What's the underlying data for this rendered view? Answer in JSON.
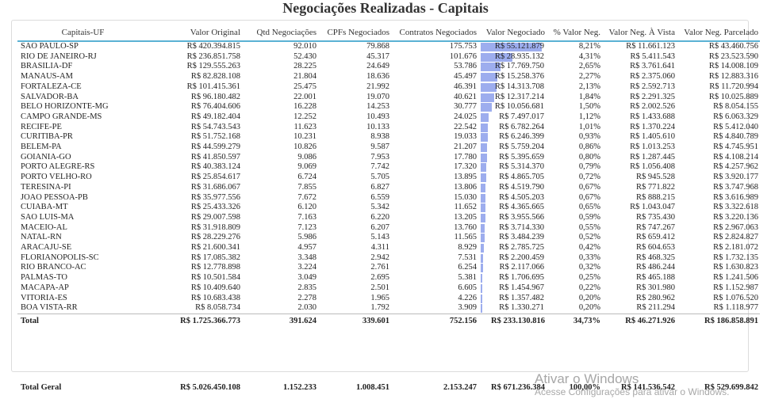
{
  "title": "Negociações Realizadas - Capitais",
  "columns": [
    "Capitais-UF",
    "Valor Original",
    "Qtd Negociações",
    "CPFs Negociados",
    "Contratos Negociados",
    "Valor Negociado",
    "% Valor Neg.",
    "Valor Neg. À Vista",
    "Valor Neg. Parcelado"
  ],
  "bar_color": "#9dadee",
  "bar_max_value": 55121879,
  "rows": [
    {
      "uf": "SAO PAULO-SP",
      "orig": "R$ 420.394.815",
      "qtd": "92.010",
      "cpfs": "79.868",
      "contratos": "175.753",
      "vneg": "R$ 55.121.879",
      "vneg_num": 55121879,
      "pct": "8,21%",
      "vista": "R$ 11.661.123",
      "parc": "R$ 43.460.756"
    },
    {
      "uf": "RIO DE JANEIRO-RJ",
      "orig": "R$ 236.851.758",
      "qtd": "52.430",
      "cpfs": "45.317",
      "contratos": "101.676",
      "vneg": "R$ 28.935.132",
      "vneg_num": 28935132,
      "pct": "4,31%",
      "vista": "R$ 5.411.543",
      "parc": "R$ 23.523.590"
    },
    {
      "uf": "BRASILIA-DF",
      "orig": "R$ 129.555.263",
      "qtd": "28.225",
      "cpfs": "24.649",
      "contratos": "53.786",
      "vneg": "R$ 17.769.750",
      "vneg_num": 17769750,
      "pct": "2,65%",
      "vista": "R$ 3.761.641",
      "parc": "R$ 14.008.109"
    },
    {
      "uf": "MANAUS-AM",
      "orig": "R$ 82.828.108",
      "qtd": "21.804",
      "cpfs": "18.636",
      "contratos": "45.497",
      "vneg": "R$ 15.258.376",
      "vneg_num": 15258376,
      "pct": "2,27%",
      "vista": "R$ 2.375.060",
      "parc": "R$ 12.883.316"
    },
    {
      "uf": "FORTALEZA-CE",
      "orig": "R$ 101.415.361",
      "qtd": "25.475",
      "cpfs": "21.992",
      "contratos": "46.391",
      "vneg": "R$ 14.313.708",
      "vneg_num": 14313708,
      "pct": "2,13%",
      "vista": "R$ 2.592.713",
      "parc": "R$ 11.720.994"
    },
    {
      "uf": "SALVADOR-BA",
      "orig": "R$ 96.180.482",
      "qtd": "22.001",
      "cpfs": "19.070",
      "contratos": "40.621",
      "vneg": "R$ 12.317.214",
      "vneg_num": 12317214,
      "pct": "1,84%",
      "vista": "R$ 2.291.325",
      "parc": "R$ 10.025.889"
    },
    {
      "uf": "BELO HORIZONTE-MG",
      "orig": "R$ 76.404.606",
      "qtd": "16.228",
      "cpfs": "14.253",
      "contratos": "30.777",
      "vneg": "R$ 10.056.681",
      "vneg_num": 10056681,
      "pct": "1,50%",
      "vista": "R$ 2.002.526",
      "parc": "R$ 8.054.155"
    },
    {
      "uf": "CAMPO GRANDE-MS",
      "orig": "R$ 49.182.404",
      "qtd": "12.252",
      "cpfs": "10.493",
      "contratos": "24.025",
      "vneg": "R$ 7.497.017",
      "vneg_num": 7497017,
      "pct": "1,12%",
      "vista": "R$ 1.433.688",
      "parc": "R$ 6.063.329"
    },
    {
      "uf": "RECIFE-PE",
      "orig": "R$ 54.743.543",
      "qtd": "11.623",
      "cpfs": "10.133",
      "contratos": "22.542",
      "vneg": "R$ 6.782.264",
      "vneg_num": 6782264,
      "pct": "1,01%",
      "vista": "R$ 1.370.224",
      "parc": "R$ 5.412.040"
    },
    {
      "uf": "CURITIBA-PR",
      "orig": "R$ 51.752.168",
      "qtd": "10.231",
      "cpfs": "8.938",
      "contratos": "19.033",
      "vneg": "R$ 6.246.399",
      "vneg_num": 6246399,
      "pct": "0,93%",
      "vista": "R$ 1.405.610",
      "parc": "R$ 4.840.789"
    },
    {
      "uf": "BELEM-PA",
      "orig": "R$ 44.599.279",
      "qtd": "10.826",
      "cpfs": "9.587",
      "contratos": "21.207",
      "vneg": "R$ 5.759.204",
      "vneg_num": 5759204,
      "pct": "0,86%",
      "vista": "R$ 1.013.253",
      "parc": "R$ 4.745.951"
    },
    {
      "uf": "GOIANIA-GO",
      "orig": "R$ 41.850.597",
      "qtd": "9.086",
      "cpfs": "7.953",
      "contratos": "17.780",
      "vneg": "R$ 5.395.659",
      "vneg_num": 5395659,
      "pct": "0,80%",
      "vista": "R$ 1.287.445",
      "parc": "R$ 4.108.214"
    },
    {
      "uf": "PORTO ALEGRE-RS",
      "orig": "R$ 40.383.124",
      "qtd": "9.069",
      "cpfs": "7.742",
      "contratos": "17.320",
      "vneg": "R$ 5.314.370",
      "vneg_num": 5314370,
      "pct": "0,79%",
      "vista": "R$ 1.056.408",
      "parc": "R$ 4.257.962"
    },
    {
      "uf": "PORTO VELHO-RO",
      "orig": "R$ 25.854.617",
      "qtd": "6.724",
      "cpfs": "5.705",
      "contratos": "13.895",
      "vneg": "R$ 4.865.705",
      "vneg_num": 4865705,
      "pct": "0,72%",
      "vista": "R$ 945.528",
      "parc": "R$ 3.920.177"
    },
    {
      "uf": "TERESINA-PI",
      "orig": "R$ 31.686.067",
      "qtd": "7.855",
      "cpfs": "6.827",
      "contratos": "13.806",
      "vneg": "R$ 4.519.790",
      "vneg_num": 4519790,
      "pct": "0,67%",
      "vista": "R$ 771.822",
      "parc": "R$ 3.747.968"
    },
    {
      "uf": "JOAO PESSOA-PB",
      "orig": "R$ 35.977.556",
      "qtd": "7.672",
      "cpfs": "6.559",
      "contratos": "15.030",
      "vneg": "R$ 4.505.203",
      "vneg_num": 4505203,
      "pct": "0,67%",
      "vista": "R$ 888.215",
      "parc": "R$ 3.616.989"
    },
    {
      "uf": "CUIABA-MT",
      "orig": "R$ 25.433.326",
      "qtd": "6.120",
      "cpfs": "5.342",
      "contratos": "11.652",
      "vneg": "R$ 4.365.665",
      "vneg_num": 4365665,
      "pct": "0,65%",
      "vista": "R$ 1.043.047",
      "parc": "R$ 3.322.618"
    },
    {
      "uf": "SAO LUIS-MA",
      "orig": "R$ 29.007.598",
      "qtd": "7.163",
      "cpfs": "6.220",
      "contratos": "13.205",
      "vneg": "R$ 3.955.566",
      "vneg_num": 3955566,
      "pct": "0,59%",
      "vista": "R$ 735.430",
      "parc": "R$ 3.220.136"
    },
    {
      "uf": "MACEIO-AL",
      "orig": "R$ 31.918.809",
      "qtd": "7.123",
      "cpfs": "6.207",
      "contratos": "13.760",
      "vneg": "R$ 3.714.330",
      "vneg_num": 3714330,
      "pct": "0,55%",
      "vista": "R$ 747.267",
      "parc": "R$ 2.967.063"
    },
    {
      "uf": "NATAL-RN",
      "orig": "R$ 28.229.276",
      "qtd": "5.986",
      "cpfs": "5.143",
      "contratos": "11.565",
      "vneg": "R$ 3.484.239",
      "vneg_num": 3484239,
      "pct": "0,52%",
      "vista": "R$ 659.412",
      "parc": "R$ 2.824.827"
    },
    {
      "uf": "ARACAJU-SE",
      "orig": "R$ 21.600.341",
      "qtd": "4.957",
      "cpfs": "4.311",
      "contratos": "8.929",
      "vneg": "R$ 2.785.725",
      "vneg_num": 2785725,
      "pct": "0,42%",
      "vista": "R$ 604.653",
      "parc": "R$ 2.181.072"
    },
    {
      "uf": "FLORIANOPOLIS-SC",
      "orig": "R$ 17.085.382",
      "qtd": "3.348",
      "cpfs": "2.942",
      "contratos": "7.531",
      "vneg": "R$ 2.200.459",
      "vneg_num": 2200459,
      "pct": "0,33%",
      "vista": "R$ 468.325",
      "parc": "R$ 1.732.135"
    },
    {
      "uf": "RIO BRANCO-AC",
      "orig": "R$ 12.778.898",
      "qtd": "3.224",
      "cpfs": "2.761",
      "contratos": "6.254",
      "vneg": "R$ 2.117.066",
      "vneg_num": 2117066,
      "pct": "0,32%",
      "vista": "R$ 486.244",
      "parc": "R$ 1.630.823"
    },
    {
      "uf": "PALMAS-TO",
      "orig": "R$ 10.501.584",
      "qtd": "3.049",
      "cpfs": "2.695",
      "contratos": "5.381",
      "vneg": "R$ 1.706.695",
      "vneg_num": 1706695,
      "pct": "0,25%",
      "vista": "R$ 465.188",
      "parc": "R$ 1.241.506"
    },
    {
      "uf": "MACAPA-AP",
      "orig": "R$ 10.409.640",
      "qtd": "2.835",
      "cpfs": "2.501",
      "contratos": "6.605",
      "vneg": "R$ 1.454.967",
      "vneg_num": 1454967,
      "pct": "0,22%",
      "vista": "R$ 301.980",
      "parc": "R$ 1.152.987"
    },
    {
      "uf": "VITORIA-ES",
      "orig": "R$ 10.683.438",
      "qtd": "2.278",
      "cpfs": "1.965",
      "contratos": "4.226",
      "vneg": "R$ 1.357.482",
      "vneg_num": 1357482,
      "pct": "0,20%",
      "vista": "R$ 280.962",
      "parc": "R$ 1.076.520"
    },
    {
      "uf": "BOA VISTA-RR",
      "orig": "R$ 8.058.734",
      "qtd": "2.030",
      "cpfs": "1.792",
      "contratos": "3.909",
      "vneg": "R$ 1.330.271",
      "vneg_num": 1330271,
      "pct": "0,20%",
      "vista": "R$ 211.294",
      "parc": "R$ 1.118.977"
    }
  ],
  "total": {
    "uf": "Total",
    "orig": "R$ 1.725.366.773",
    "qtd": "391.624",
    "cpfs": "339.601",
    "contratos": "752.156",
    "vneg": "R$ 233.130.816",
    "pct": "34,73%",
    "vista": "R$ 46.271.926",
    "parc": "R$ 186.858.891"
  },
  "total_geral": {
    "uf": "Total Geral",
    "orig": "R$ 5.026.450.108",
    "qtd": "1.152.233",
    "cpfs": "1.008.451",
    "contratos": "2.153.247",
    "vneg": "R$ 671.236.384",
    "pct": "100,00%",
    "vista": "R$ 141.536.542",
    "parc": "R$ 529.699.842"
  },
  "watermark": {
    "line1": "Ativar o Windows",
    "line2": "Acesse Configurações para ativar o Windows."
  }
}
